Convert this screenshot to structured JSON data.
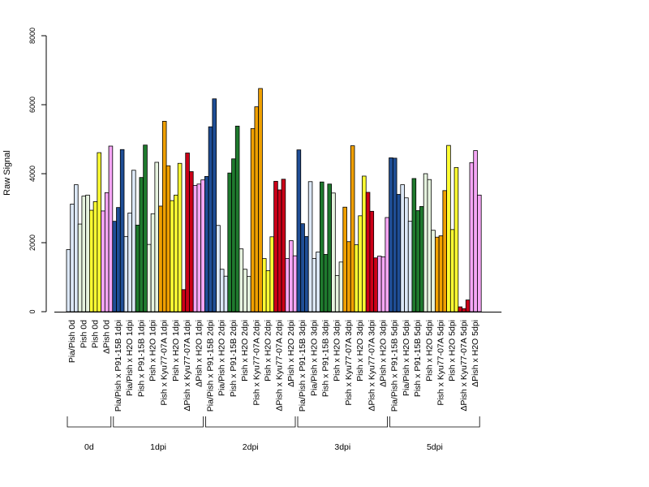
{
  "chart_data": {
    "type": "bar",
    "title": "",
    "ylabel": "Raw Signal",
    "xlabel": "",
    "ylim": [
      0,
      8000
    ],
    "yticks": [
      0,
      2000,
      4000,
      6000,
      8000
    ],
    "grid": false,
    "colors": {
      "Pia/Pish": "#dce8f7",
      "Pia/Pish x P91-15B": "#1f4e96",
      "Pia/Pish x H2O": "#dce8f7",
      "Pish x P91-15B": "#1f7a2e",
      "Pish x H2O": "#e6f3df",
      "Pish x Kyu77-07A": "#f0a000",
      "Pish": "#ffff33",
      "ΔPish x Kyu77-07A": "#cc0018",
      "ΔPish": "#f5a6f5",
      "ΔPish x H2O": "#f5a6f5"
    },
    "categories": [
      {
        "label": "Pia/Pish 0d",
        "key": "Pia/Pish",
        "values": [
          1800,
          3120,
          3680
        ]
      },
      {
        "label": "Pish 0d",
        "key": "Pish x H2O",
        "values": [
          2540,
          3350,
          3380
        ]
      },
      {
        "label": "Pish 0d",
        "key": "Pish",
        "values": [
          2940,
          3190,
          4610
        ]
      },
      {
        "label": "ΔPish 0d",
        "key": "ΔPish",
        "values": [
          2920,
          3450,
          4800
        ]
      },
      {
        "label": "Pia/Pish x P91-15B 1dpi",
        "key": "Pia/Pish x P91-15B",
        "values": [
          2620,
          3020,
          4700
        ]
      },
      {
        "label": "Pia/Pish x H2O 1dpi",
        "key": "Pia/Pish x H2O",
        "values": [
          2180,
          2860,
          4100
        ]
      },
      {
        "label": "Pish x P91-15B 1dpi",
        "key": "Pish x P91-15B",
        "values": [
          2510,
          3890,
          4830
        ]
      },
      {
        "label": "Pish x H2O 1dpi",
        "key": "Pish x H2O",
        "values": [
          1950,
          2840,
          4330
        ]
      },
      {
        "label": "Pish x Kyu77-07A 1dpi",
        "key": "Pish x Kyu77-07A",
        "values": [
          3060,
          5520,
          4230
        ]
      },
      {
        "label": "Pish x H2O 1dpi",
        "key": "Pish",
        "values": [
          3220,
          3380,
          4300
        ]
      },
      {
        "label": "ΔPish x Kyu77-07A 1dpi",
        "key": "ΔPish x Kyu77-07A",
        "values": [
          640,
          4600,
          4060
        ]
      },
      {
        "label": "ΔPish x H2O 1dpi",
        "key": "ΔPish x H2O",
        "values": [
          3660,
          3700,
          3820
        ]
      },
      {
        "label": "Pia/Pish x P91-15B 2dpi",
        "key": "Pia/Pish x P91-15B",
        "values": [
          3920,
          5360,
          6170
        ]
      },
      {
        "label": "Pia/Pish x H2O 2dpi",
        "key": "Pia/Pish x H2O",
        "values": [
          2500,
          1230,
          1030
        ]
      },
      {
        "label": "Pish x P91-15B 2dpi",
        "key": "Pish x P91-15B",
        "values": [
          4020,
          4430,
          5380
        ]
      },
      {
        "label": "Pish x H2O 2dpi",
        "key": "Pish x H2O",
        "values": [
          1820,
          1230,
          1020
        ]
      },
      {
        "label": "Pish x Kyu77-07A 2dpi",
        "key": "Pish x Kyu77-07A",
        "values": [
          5310,
          5940,
          6470
        ]
      },
      {
        "label": "Pish x H2O 2dpi",
        "key": "Pish",
        "values": [
          1540,
          1190,
          2170
        ]
      },
      {
        "label": "ΔPish x Kyu77-07A 2dpi",
        "key": "ΔPish x Kyu77-07A",
        "values": [
          3780,
          3530,
          3840
        ]
      },
      {
        "label": "ΔPish x H2O 2dpi",
        "key": "ΔPish x H2O",
        "values": [
          1540,
          2060,
          1620
        ]
      },
      {
        "label": "Pia/Pish x P91-15B 3dpi",
        "key": "Pia/Pish x P91-15B",
        "values": [
          4690,
          2550,
          2180
        ]
      },
      {
        "label": "Pia/Pish x H2O 3dpi",
        "key": "Pia/Pish x H2O",
        "values": [
          3770,
          1540,
          1730
        ]
      },
      {
        "label": "Pish x P91-15B 3dpi",
        "key": "Pish x P91-15B",
        "values": [
          3760,
          1660,
          3700
        ]
      },
      {
        "label": "Pish x H2O 3dpi",
        "key": "Pish x H2O",
        "values": [
          3440,
          1050,
          1440
        ]
      },
      {
        "label": "Pish x Kyu77-07A 3dpi",
        "key": "Pish x Kyu77-07A",
        "values": [
          3030,
          2030,
          4810
        ]
      },
      {
        "label": "Pish x H2O 3dpi",
        "key": "Pish",
        "values": [
          1940,
          2780,
          3930
        ]
      },
      {
        "label": "ΔPish x Kyu77-07A 3dpi",
        "key": "ΔPish x Kyu77-07A",
        "values": [
          3460,
          2910,
          1560
        ]
      },
      {
        "label": "ΔPish x H2O 3dpi",
        "key": "ΔPish x H2O",
        "values": [
          1610,
          1590,
          2730
        ]
      },
      {
        "label": "Pia/Pish x P91-15B 5dpi",
        "key": "Pia/Pish x P91-15B",
        "values": [
          4460,
          4450,
          3400
        ]
      },
      {
        "label": "Pia/Pish x H2O 5dpi",
        "key": "Pia/Pish x H2O",
        "values": [
          3680,
          3300,
          2620
        ]
      },
      {
        "label": "Pish x P91-15B 5dpi",
        "key": "Pish x P91-15B",
        "values": [
          3860,
          2930,
          3050
        ]
      },
      {
        "label": "Pish x H2O 5dpi",
        "key": "Pish x H2O",
        "values": [
          4000,
          3830,
          2360
        ]
      },
      {
        "label": "Pish x Kyu77-07A 5dpi",
        "key": "Pish x Kyu77-07A",
        "values": [
          2160,
          2200,
          3510
        ]
      },
      {
        "label": "Pish x H2O 5dpi",
        "key": "Pish",
        "values": [
          4820,
          2380,
          4180
        ]
      },
      {
        "label": "ΔPish x Kyu77-07A 5dpi",
        "key": "ΔPish x Kyu77-07A",
        "values": [
          140,
          90,
          340
        ]
      },
      {
        "label": "ΔPish x H2O 5dpi",
        "key": "ΔPish x H2O",
        "values": [
          4320,
          4670,
          3380
        ]
      }
    ],
    "groups": [
      {
        "label": "0d",
        "from": 0,
        "to": 3
      },
      {
        "label": "1dpi",
        "from": 4,
        "to": 11
      },
      {
        "label": "2dpi",
        "from": 12,
        "to": 19
      },
      {
        "label": "3dpi",
        "from": 20,
        "to": 27
      },
      {
        "label": "5dpi",
        "from": 28,
        "to": 35
      }
    ]
  }
}
